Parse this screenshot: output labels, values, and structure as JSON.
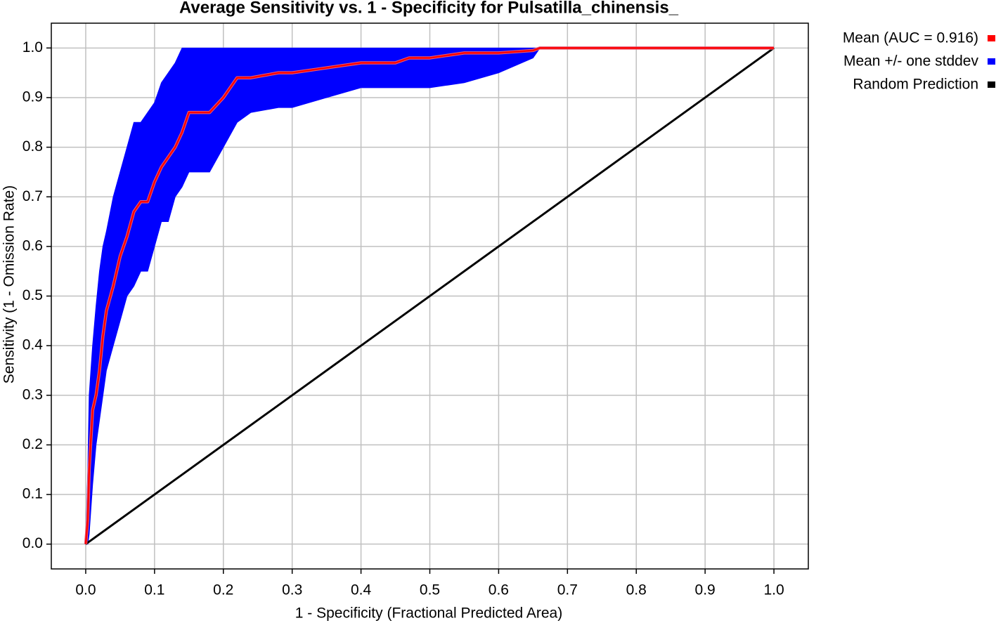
{
  "chart_data": {
    "type": "roc",
    "title": "Average Sensitivity vs. 1 - Specificity for Pulsatilla_chinensis_",
    "x_label": "1 - Specificity (Fractional Predicted Area)",
    "y_label": "Sensitivity (1 - Omission Rate)",
    "xlim": [
      -0.05,
      1.05
    ],
    "ylim": [
      -0.05,
      1.05
    ],
    "xticks": [
      {
        "value": 0,
        "label": "0.0"
      },
      0.1,
      0.2,
      0.3,
      0.4,
      0.5,
      0.6,
      0.7,
      0.8,
      0.9,
      {
        "value": 1,
        "label": "1.0"
      }
    ],
    "yticks": [
      {
        "value": 0,
        "label": "0.0"
      },
      0.1,
      0.2,
      0.3,
      0.4,
      0.5,
      0.6,
      0.7,
      0.8,
      0.9,
      {
        "value": 1,
        "label": "1.0"
      }
    ],
    "grid": true,
    "legend": "right",
    "x": [
      0,
      0.003,
      0.005,
      0.01,
      0.015,
      0.02,
      0.025,
      0.03,
      0.04,
      0.05,
      0.06,
      0.07,
      0.08,
      0.09,
      0.1,
      0.11,
      0.12,
      0.13,
      0.14,
      0.15,
      0.16,
      0.18,
      0.2,
      0.22,
      0.24,
      0.28,
      0.3,
      0.35,
      0.4,
      0.45,
      0.47,
      0.5,
      0.55,
      0.6,
      0.65,
      0.66,
      0.7,
      0.8,
      0.9,
      1.0
    ],
    "series": [
      {
        "name": "Mean (AUC = 0.916)",
        "color": "#ff0000",
        "values": [
          0,
          0.05,
          0.15,
          0.27,
          0.3,
          0.35,
          0.42,
          0.47,
          0.52,
          0.58,
          0.62,
          0.67,
          0.69,
          0.69,
          0.73,
          0.76,
          0.78,
          0.8,
          0.83,
          0.87,
          0.87,
          0.87,
          0.9,
          0.94,
          0.94,
          0.95,
          0.95,
          0.96,
          0.97,
          0.97,
          0.98,
          0.98,
          0.99,
          0.99,
          0.995,
          1,
          1,
          1,
          1,
          1
        ]
      },
      {
        "name": "Mean +/- one stddev",
        "color": "#0000ff",
        "upper": [
          0,
          0.15,
          0.3,
          0.4,
          0.48,
          0.55,
          0.6,
          0.63,
          0.7,
          0.75,
          0.8,
          0.85,
          0.85,
          0.87,
          0.89,
          0.93,
          0.95,
          0.97,
          1,
          1,
          1,
          1,
          1,
          1,
          1,
          1,
          1,
          1,
          1,
          1,
          1,
          1,
          1,
          1,
          1,
          1,
          1,
          1,
          1,
          1
        ],
        "lower": [
          0,
          0,
          0.02,
          0.12,
          0.2,
          0.25,
          0.3,
          0.35,
          0.4,
          0.45,
          0.5,
          0.52,
          0.55,
          0.55,
          0.6,
          0.65,
          0.65,
          0.7,
          0.72,
          0.75,
          0.75,
          0.75,
          0.8,
          0.85,
          0.87,
          0.88,
          0.88,
          0.9,
          0.92,
          0.92,
          0.92,
          0.92,
          0.93,
          0.95,
          0.98,
          1,
          1,
          1,
          1,
          1
        ]
      },
      {
        "name": "Random Prediction",
        "color": "#000000",
        "x": [
          0,
          1
        ],
        "values": [
          0,
          1
        ]
      }
    ]
  }
}
